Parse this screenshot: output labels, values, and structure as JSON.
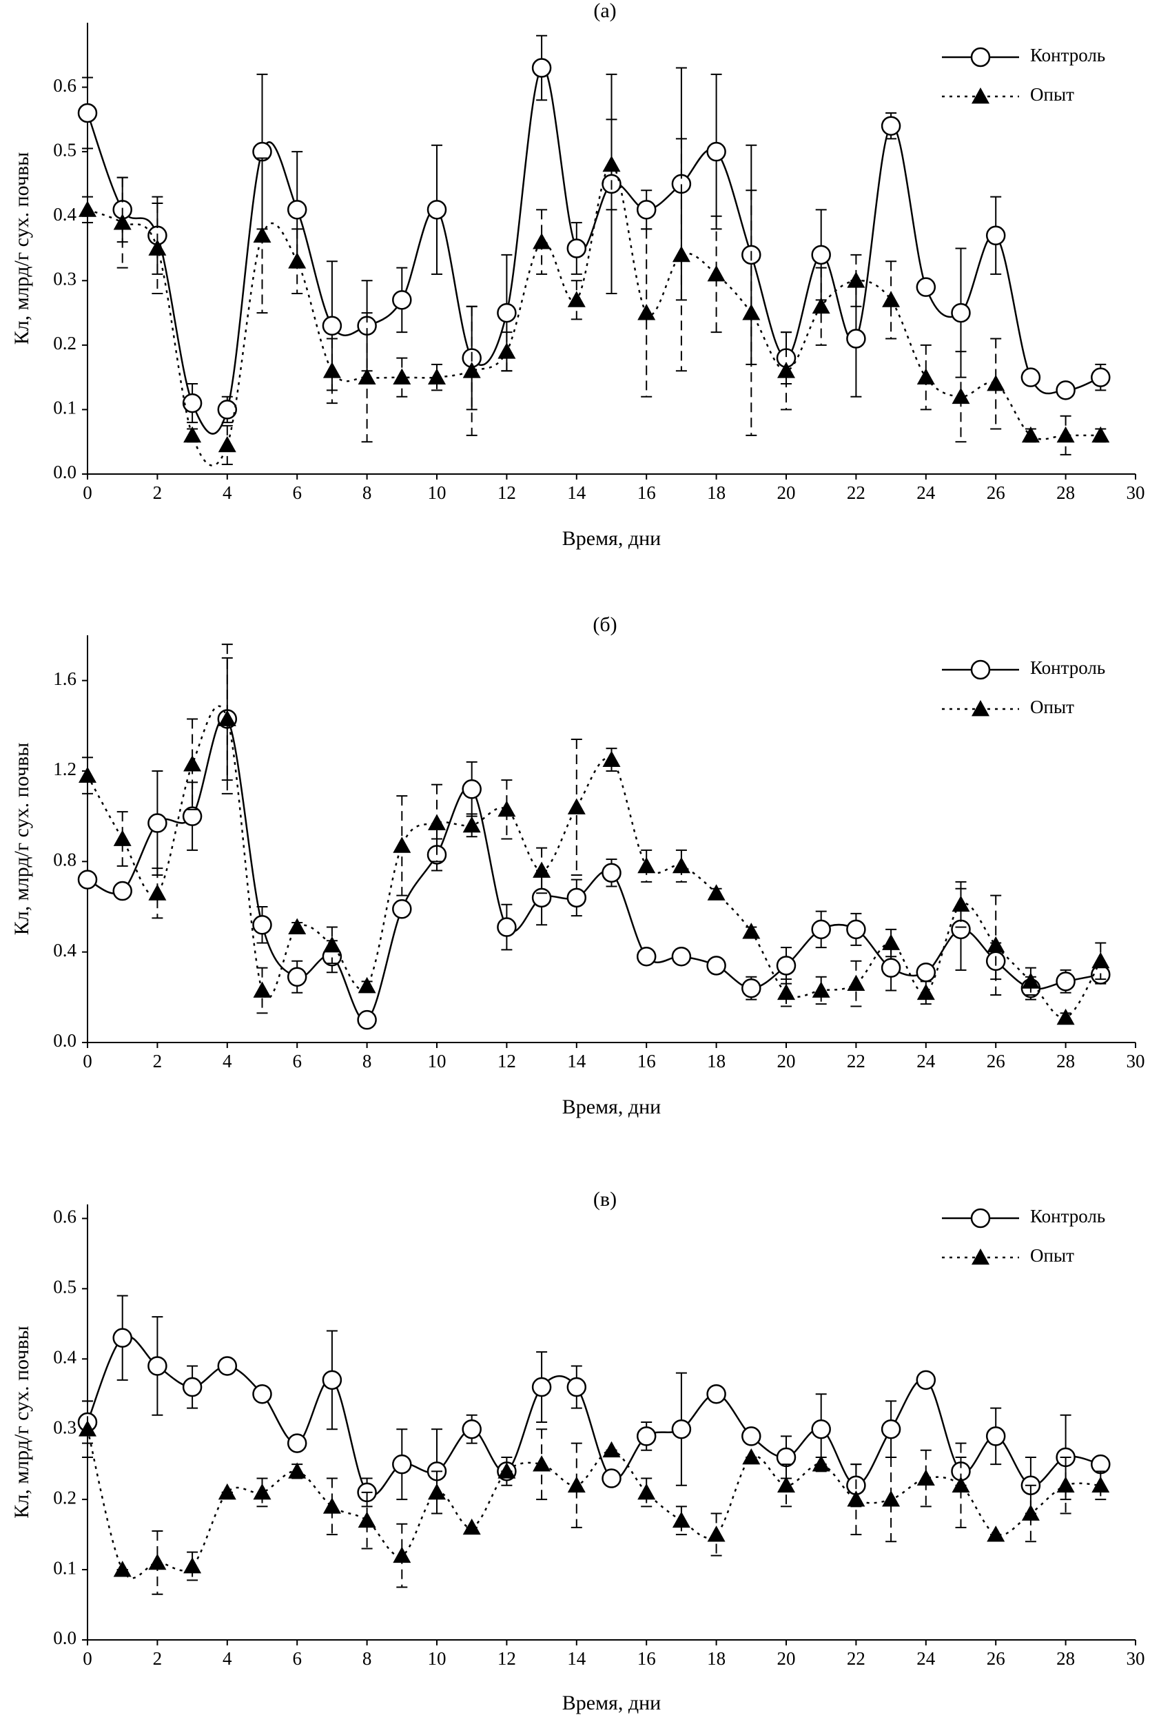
{
  "chart_data": [
    {
      "type": "line",
      "title": "(а)",
      "xlabel": "Время, дни",
      "ylabel": "Кл, млрд/г сух. почвы",
      "xlim": [
        0,
        30
      ],
      "ylim": [
        0,
        0.7
      ],
      "xticks": [
        0,
        2,
        4,
        6,
        8,
        10,
        12,
        14,
        16,
        18,
        20,
        22,
        24,
        26,
        28,
        30
      ],
      "yticks": [
        {
          "value": 0,
          "label": "0.0"
        },
        0.1,
        0.2,
        0.3,
        0.4,
        0.5,
        0.6
      ],
      "x": [
        0,
        1,
        2,
        3,
        4,
        5,
        6,
        7,
        8,
        9,
        10,
        11,
        12,
        13,
        14,
        15,
        16,
        17,
        18,
        19,
        20,
        21,
        22,
        23,
        24,
        25,
        26,
        27,
        28,
        29
      ],
      "series": [
        {
          "name": "Контроль",
          "color": "#000000",
          "line_style": "solid",
          "marker": "circle",
          "values": [
            0.56,
            0.41,
            0.37,
            0.11,
            0.1,
            0.5,
            0.41,
            0.23,
            0.23,
            0.27,
            0.41,
            0.18,
            0.25,
            0.63,
            0.35,
            0.45,
            0.41,
            0.45,
            0.5,
            0.34,
            0.18,
            0.34,
            0.21,
            0.54,
            0.29,
            0.25,
            0.37,
            0.15,
            0.13,
            0.15
          ],
          "errors": [
            0.055,
            0.05,
            0.06,
            0.03,
            0.02,
            0.12,
            0.09,
            0.1,
            0.07,
            0.05,
            0.1,
            0.08,
            0.09,
            0.05,
            0.04,
            0.17,
            0.03,
            0.18,
            0.12,
            0.17,
            0.04,
            0.07,
            0.09,
            0.02,
            0.01,
            0.1,
            0.06,
            0.01,
            0.01,
            0.02
          ]
        },
        {
          "name": "Опыт",
          "color": "#000000",
          "line_style": "dotted",
          "marker": "triangle",
          "values": [
            0.41,
            0.39,
            0.35,
            0.06,
            0.045,
            0.37,
            0.33,
            0.16,
            0.15,
            0.15,
            0.15,
            0.16,
            0.19,
            0.36,
            0.27,
            0.48,
            0.25,
            0.34,
            0.31,
            0.25,
            0.16,
            0.26,
            0.3,
            0.27,
            0.15,
            0.12,
            0.14,
            0.06,
            0.06,
            0.06
          ],
          "errors": [
            0.02,
            0.07,
            0.07,
            0.01,
            0.03,
            0.12,
            0.05,
            0.05,
            0.1,
            0.03,
            0.02,
            0.1,
            0.03,
            0.05,
            0.03,
            0.07,
            0.13,
            0.18,
            0.09,
            0.19,
            0.06,
            0.06,
            0.04,
            0.06,
            0.05,
            0.07,
            0.07,
            0.01,
            0.03,
            0.01
          ]
        }
      ]
    },
    {
      "type": "line",
      "title": "(б)",
      "xlabel": "Время, дни",
      "ylabel": "Кл, млрд/г сух. почвы",
      "xlim": [
        0,
        30
      ],
      "ylim": [
        0,
        1.8
      ],
      "xticks": [
        0,
        2,
        4,
        6,
        8,
        10,
        12,
        14,
        16,
        18,
        20,
        22,
        24,
        26,
        28,
        30
      ],
      "yticks": [
        {
          "value": 0,
          "label": "0.0"
        },
        0.4,
        0.8,
        1.2,
        1.6
      ],
      "x": [
        0,
        1,
        2,
        3,
        4,
        5,
        6,
        7,
        8,
        9,
        10,
        11,
        12,
        13,
        14,
        15,
        16,
        17,
        18,
        19,
        20,
        21,
        22,
        23,
        24,
        25,
        26,
        27,
        28,
        29
      ],
      "series": [
        {
          "name": "Контроль",
          "color": "#000000",
          "line_style": "solid",
          "marker": "circle",
          "values": [
            0.72,
            0.67,
            0.97,
            1.0,
            1.43,
            0.52,
            0.29,
            0.38,
            0.1,
            0.59,
            0.83,
            1.12,
            0.51,
            0.64,
            0.64,
            0.75,
            0.38,
            0.38,
            0.34,
            0.24,
            0.34,
            0.5,
            0.5,
            0.33,
            0.31,
            0.5,
            0.36,
            0.24,
            0.27,
            0.3
          ],
          "errors": [
            0.03,
            0.02,
            0.23,
            0.15,
            0.27,
            0.08,
            0.07,
            0.07,
            0.01,
            0.03,
            0.07,
            0.12,
            0.1,
            0.12,
            0.08,
            0.06,
            0.03,
            0.03,
            0.02,
            0.05,
            0.08,
            0.08,
            0.07,
            0.1,
            0.03,
            0.18,
            0.08,
            0.05,
            0.05,
            0.04
          ]
        },
        {
          "name": "Опыт",
          "color": "#000000",
          "line_style": "dotted",
          "marker": "triangle",
          "values": [
            1.18,
            0.9,
            0.66,
            1.23,
            1.43,
            0.23,
            0.51,
            0.43,
            0.25,
            0.87,
            0.97,
            0.96,
            1.03,
            0.76,
            1.04,
            1.25,
            0.78,
            0.78,
            0.66,
            0.49,
            0.22,
            0.23,
            0.26,
            0.44,
            0.22,
            0.61,
            0.43,
            0.27,
            0.11,
            0.36
          ],
          "errors": [
            0.08,
            0.12,
            0.11,
            0.2,
            0.33,
            0.1,
            0.02,
            0.08,
            0.02,
            0.22,
            0.17,
            0.05,
            0.13,
            0.1,
            0.3,
            0.05,
            0.07,
            0.07,
            0.02,
            0.02,
            0.06,
            0.06,
            0.1,
            0.06,
            0.05,
            0.1,
            0.22,
            0.06,
            0.02,
            0.08
          ]
        }
      ]
    },
    {
      "type": "line",
      "title": "(в)",
      "xlabel": "Время, дни",
      "ylabel": "Кл, млрд/г сух. почвы",
      "xlim": [
        0,
        30
      ],
      "ylim": [
        0,
        0.62
      ],
      "xticks": [
        0,
        2,
        4,
        6,
        8,
        10,
        12,
        14,
        16,
        18,
        20,
        22,
        24,
        26,
        28,
        30
      ],
      "yticks": [
        {
          "value": 0,
          "label": "0.0"
        },
        0.1,
        0.2,
        0.3,
        0.4,
        0.5,
        0.6
      ],
      "x": [
        0,
        1,
        2,
        3,
        4,
        5,
        6,
        7,
        8,
        9,
        10,
        11,
        12,
        13,
        14,
        15,
        16,
        17,
        18,
        19,
        20,
        21,
        22,
        23,
        24,
        25,
        26,
        27,
        28,
        29
      ],
      "series": [
        {
          "name": "Контроль",
          "color": "#000000",
          "line_style": "solid",
          "marker": "circle",
          "values": [
            0.31,
            0.43,
            0.39,
            0.36,
            0.39,
            0.35,
            0.28,
            0.37,
            0.21,
            0.25,
            0.24,
            0.3,
            0.24,
            0.36,
            0.36,
            0.23,
            0.29,
            0.3,
            0.35,
            0.29,
            0.26,
            0.3,
            0.22,
            0.3,
            0.37,
            0.24,
            0.29,
            0.22,
            0.26,
            0.25
          ],
          "errors": [
            0.03,
            0.06,
            0.07,
            0.03,
            0,
            0,
            0,
            0.07,
            0.02,
            0.05,
            0.06,
            0.02,
            0.02,
            0.05,
            0.03,
            0,
            0.02,
            0.08,
            0,
            0,
            0.03,
            0.05,
            0.03,
            0.04,
            0.01,
            0.02,
            0.04,
            0.04,
            0.06,
            0
          ]
        },
        {
          "name": "Опыт",
          "color": "#000000",
          "line_style": "dotted",
          "marker": "triangle",
          "values": [
            0.3,
            0.1,
            0.11,
            0.105,
            0.21,
            0.21,
            0.24,
            0.19,
            0.17,
            0.12,
            0.21,
            0.16,
            0.24,
            0.25,
            0.22,
            0.27,
            0.21,
            0.17,
            0.15,
            0.26,
            0.22,
            0.25,
            0.2,
            0.2,
            0.23,
            0.22,
            0.15,
            0.18,
            0.22,
            0.22
          ],
          "errors": [
            0.04,
            0,
            0.045,
            0.02,
            0,
            0.02,
            0.01,
            0.04,
            0.04,
            0.045,
            0.03,
            0,
            0,
            0.05,
            0.06,
            0,
            0.02,
            0.02,
            0.03,
            0,
            0.03,
            0.01,
            0.05,
            0.06,
            0.04,
            0.06,
            0,
            0.04,
            0.04,
            0.02
          ]
        }
      ]
    }
  ]
}
